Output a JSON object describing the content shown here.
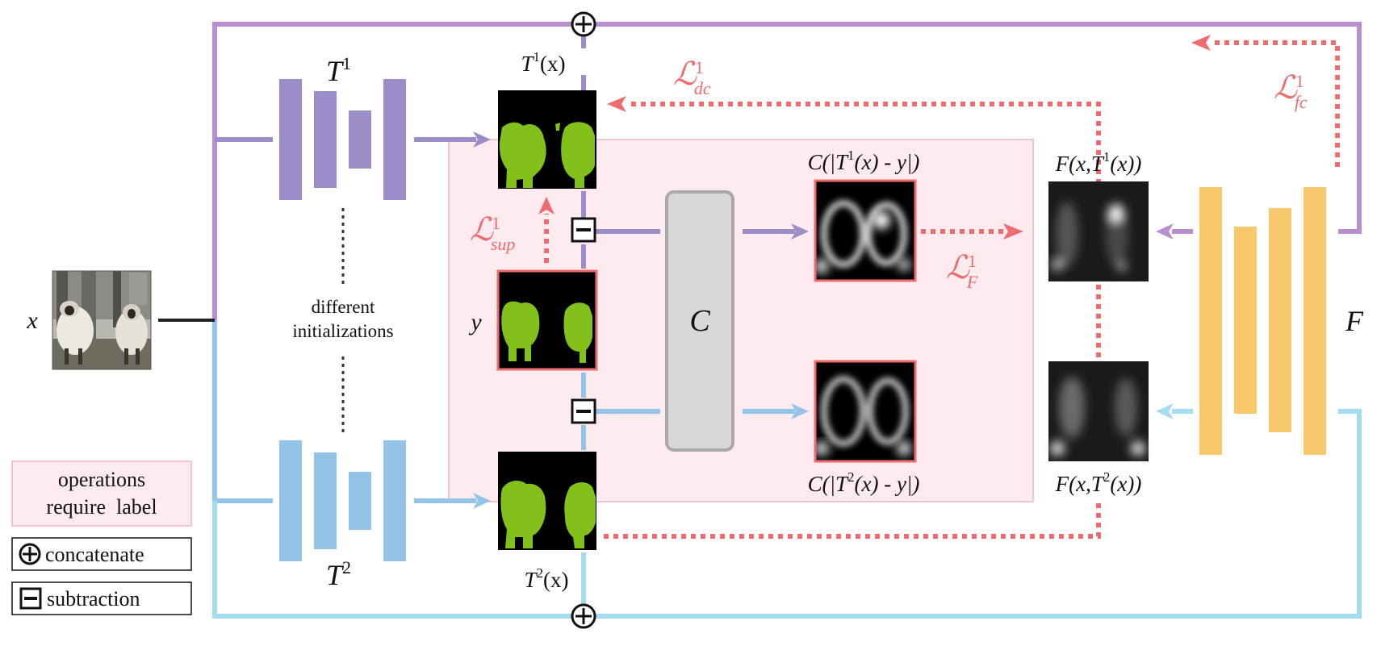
{
  "input": {
    "label": "x"
  },
  "networks": {
    "t1": {
      "label_base": "T",
      "label_sup": "1",
      "color": "#9b8dc7"
    },
    "t2": {
      "label_base": "T",
      "label_sup": "2",
      "color": "#93c4e8"
    },
    "f": {
      "label": "F",
      "color": "#f7c96c"
    },
    "note": [
      "different",
      "initializations"
    ]
  },
  "maps": {
    "t1x": {
      "base": "T",
      "sup": "1",
      "tail": "(x)"
    },
    "t2x": {
      "base": "T",
      "sup": "2",
      "tail": "(x)"
    },
    "y": {
      "label": "y"
    }
  },
  "comparator": {
    "label": "C"
  },
  "confidence_labels": {
    "top": {
      "pre": "C(|T",
      "sup": "1",
      "post": "(x) - y|)"
    },
    "bottom": {
      "pre": "C(|T",
      "sup": "2",
      "post": "(x) - y|)"
    }
  },
  "flaw_labels": {
    "top": {
      "pre": "F(x,T",
      "sup": "1",
      "post": "(x))"
    },
    "bottom": {
      "pre": "F(x,T",
      "sup": "2",
      "post": "(x))"
    }
  },
  "losses": {
    "dc": {
      "sup": "1",
      "sub": "dc"
    },
    "fc": {
      "sup": "1",
      "sub": "fc"
    },
    "sup": {
      "sup": "1",
      "sub": "sup"
    },
    "F": {
      "sup": "1",
      "sub": "F"
    },
    "script": "ℒ"
  },
  "legend": {
    "labeled_ops": [
      "operations",
      "require  label"
    ],
    "concat": "concatenate",
    "subtract": "subtraction"
  },
  "colors": {
    "purple": "#b98fd2",
    "blue": "#92c4e8",
    "cyan": "#a3dcef",
    "loss_red": "#ee6b6e",
    "mask_green": "#82c11a",
    "label_region": "#fdebf0",
    "label_region_border": "#f2c4cf"
  }
}
